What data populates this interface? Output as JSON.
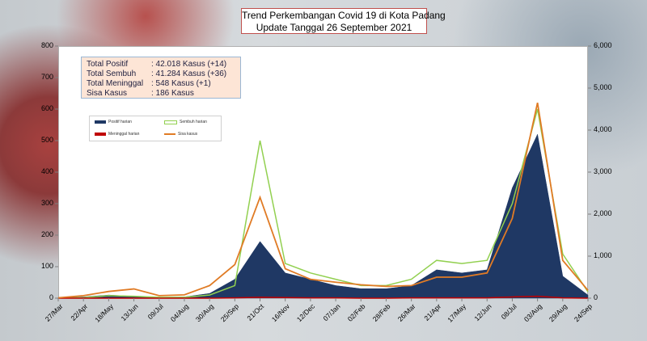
{
  "title_line1": "Trend Perkembangan Covid 19 di Kota Padang",
  "title_line2": "Update Tanggal 26 September 2021",
  "summary": [
    {
      "label": "Total Positif",
      "value": ": 42.018 Kasus  (+14)"
    },
    {
      "label": "Total Sembuh",
      "value": ": 41.284 Kasus  (+36)"
    },
    {
      "label": "Total Meninggal",
      "value": ":      548 Kasus  (+1)"
    },
    {
      "label": "Sisa Kasus",
      "value": ":      186 Kasus"
    }
  ],
  "legend": {
    "positif": "Positif harian",
    "sembuh": "Sembuh harian",
    "meninggal": "Meninggal harian",
    "sisa": "Sisa kasus"
  },
  "colors": {
    "positif": "#1f3864",
    "sembuh": "#92d050",
    "meninggal": "#c00000",
    "sisa": "#e07b25"
  },
  "chart_data": {
    "type": "area",
    "categories": [
      "27/Mar",
      "22/Apr",
      "18/May",
      "13/Jun",
      "09/Jul",
      "04/Aug",
      "30/Aug",
      "25/Sep",
      "21/Oct",
      "16/Nov",
      "12/Dec",
      "07/Jan",
      "02/Feb",
      "28/Feb",
      "26/Mar",
      "21/Apr",
      "17/May",
      "12/Jun",
      "08/Jul",
      "03/Aug",
      "29/Aug",
      "24/Sep"
    ],
    "y_left": {
      "ylim": [
        0,
        800
      ],
      "ticks": [
        "0",
        "100",
        "200",
        "300",
        "400",
        "500",
        "600",
        "700",
        "800"
      ]
    },
    "y_right": {
      "ylim": [
        0,
        6000
      ],
      "ticks": [
        "0",
        "1,000",
        "2,000",
        "3,000",
        "4,000",
        "5,000",
        "6,000"
      ]
    },
    "series": [
      {
        "name": "Positif harian",
        "axis": "left",
        "values": [
          2,
          4,
          10,
          6,
          3,
          4,
          15,
          60,
          180,
          80,
          60,
          40,
          30,
          30,
          40,
          90,
          80,
          90,
          350,
          520,
          70,
          10
        ]
      },
      {
        "name": "Sembuh harian",
        "axis": "left",
        "values": [
          1,
          2,
          8,
          6,
          3,
          3,
          10,
          40,
          500,
          110,
          80,
          60,
          40,
          40,
          60,
          120,
          110,
          120,
          300,
          600,
          140,
          20
        ]
      },
      {
        "name": "Meninggal harian",
        "axis": "left",
        "values": [
          0,
          0,
          0,
          0,
          0,
          0,
          0,
          1,
          3,
          2,
          1,
          1,
          0,
          0,
          1,
          1,
          1,
          1,
          4,
          6,
          1,
          0
        ]
      },
      {
        "name": "Sisa kasus",
        "axis": "right",
        "values": [
          10,
          60,
          160,
          220,
          60,
          80,
          300,
          800,
          2400,
          700,
          450,
          380,
          320,
          280,
          300,
          500,
          500,
          600,
          1900,
          4650,
          900,
          186
        ]
      }
    ],
    "grid": false,
    "legend_position": "upper-left"
  }
}
